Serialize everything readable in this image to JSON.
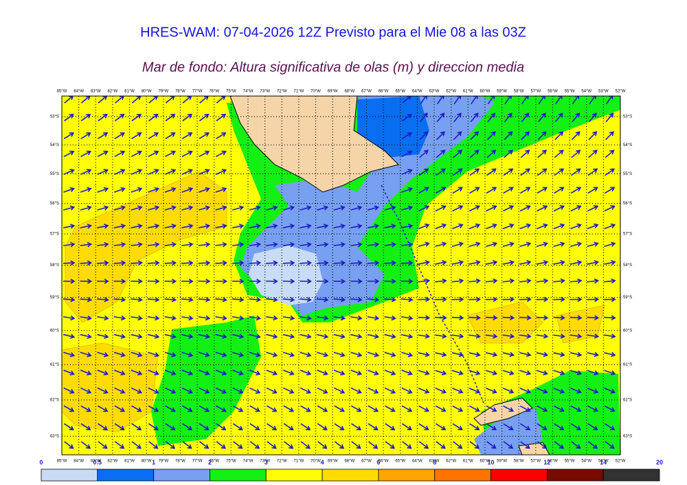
{
  "header": {
    "title": "HRES-WAM: 07-04-2026 12Z Previsto para el Mie 08 a las 03Z",
    "subtitle": "Mar de fondo: Altura significativa de olas (m) y direccion media"
  },
  "map": {
    "lon_labels": [
      "85°W",
      "84°W",
      "83°W",
      "82°W",
      "81°W",
      "80°W",
      "79°W",
      "78°W",
      "77°W",
      "76°W",
      "75°W",
      "74°W",
      "73°W",
      "72°W",
      "71°W",
      "70°W",
      "69°W",
      "68°W",
      "67°W",
      "66°W",
      "65°W",
      "64°W",
      "63°W",
      "62°W",
      "61°W",
      "60°W",
      "59°W",
      "58°W",
      "57°W",
      "56°W",
      "55°W",
      "54°W",
      "53°W",
      "52°W"
    ],
    "lat_labels": [
      "53°S",
      "54°S",
      "55°S",
      "56°S",
      "57°S",
      "58°S",
      "59°S",
      "60°S",
      "61°S",
      "62°S",
      "63°S"
    ]
  },
  "colorbar": {
    "ticks": [
      0,
      0.5,
      1,
      2,
      3,
      4,
      6,
      8,
      10,
      12,
      14,
      20
    ],
    "colors": [
      "#c8dcf8",
      "#0a6ef0",
      "#78a0f0",
      "#14f014",
      "#ffff00",
      "#ffdc00",
      "#ffa500",
      "#ff7300",
      "#ff0000",
      "#780a00",
      "#323232"
    ]
  }
}
